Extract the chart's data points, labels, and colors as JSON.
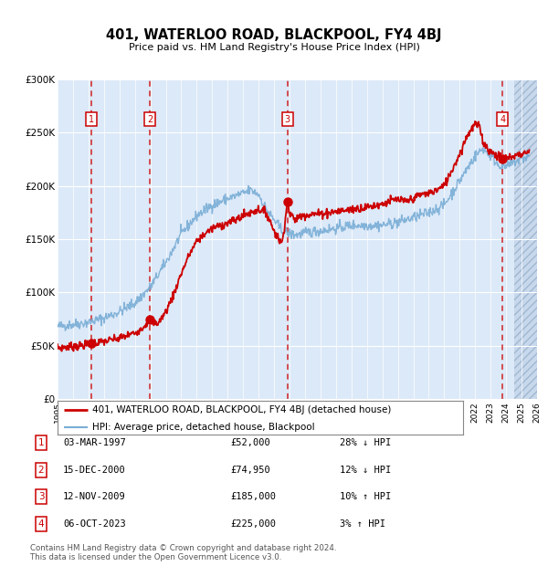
{
  "title": "401, WATERLOO ROAD, BLACKPOOL, FY4 4BJ",
  "subtitle": "Price paid vs. HM Land Registry's House Price Index (HPI)",
  "red_line_label": "401, WATERLOO ROAD, BLACKPOOL, FY4 4BJ (detached house)",
  "blue_line_label": "HPI: Average price, detached house, Blackpool",
  "transactions": [
    {
      "num": 1,
      "date": "03-MAR-1997",
      "year": 1997.17,
      "price": 52000
    },
    {
      "num": 2,
      "date": "15-DEC-2000",
      "year": 2000.96,
      "price": 74950
    },
    {
      "num": 3,
      "date": "12-NOV-2009",
      "year": 2009.87,
      "price": 185000
    },
    {
      "num": 4,
      "date": "06-OCT-2023",
      "year": 2023.77,
      "price": 225000
    }
  ],
  "table_rows": [
    {
      "num": 1,
      "date": "03-MAR-1997",
      "price": "£52,000",
      "rel": "28% ↓ HPI"
    },
    {
      "num": 2,
      "date": "15-DEC-2000",
      "price": "£74,950",
      "rel": "12% ↓ HPI"
    },
    {
      "num": 3,
      "date": "12-NOV-2009",
      "price": "£185,000",
      "rel": "10% ↑ HPI"
    },
    {
      "num": 4,
      "date": "06-OCT-2023",
      "price": "£225,000",
      "rel": "3% ↑ HPI"
    }
  ],
  "footer": "Contains HM Land Registry data © Crown copyright and database right 2024.\nThis data is licensed under the Open Government Licence v3.0.",
  "xmin": 1995,
  "xmax": 2026,
  "ymin": 0,
  "ymax": 300000,
  "yticks": [
    0,
    50000,
    100000,
    150000,
    200000,
    250000,
    300000
  ],
  "ytick_labels": [
    "£0",
    "£50K",
    "£100K",
    "£150K",
    "£200K",
    "£250K",
    "£300K"
  ],
  "bg_color": "#dce9f8",
  "red_color": "#cc0000",
  "blue_color": "#7aaed6",
  "grid_color": "#ffffff",
  "vline_color": "#cc0000",
  "hatch_start": 2024.5
}
